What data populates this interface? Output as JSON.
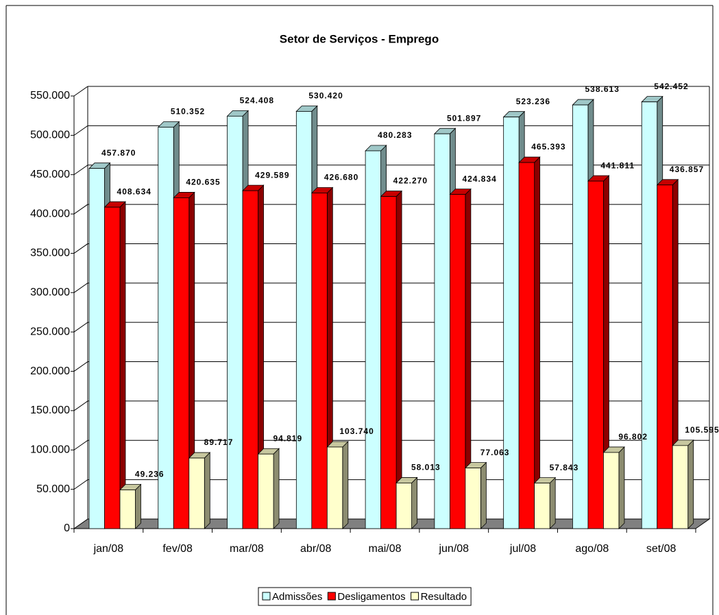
{
  "chart_data": {
    "type": "bar3d",
    "title": "Setor de Serviços - Emprego",
    "categories": [
      "jan/08",
      "fev/08",
      "mar/08",
      "abr/08",
      "mai/08",
      "jun/08",
      "jul/08",
      "ago/08",
      "set/08"
    ],
    "series": [
      {
        "name": "Admissões",
        "color": "#ccffff",
        "values": [
          457870,
          510352,
          524408,
          530420,
          480283,
          501897,
          523236,
          538613,
          542452
        ],
        "value_labels": [
          "457.870",
          "510.352",
          "524.408",
          "530.420",
          "480.283",
          "501.897",
          "523.236",
          "538.613",
          "542.452"
        ]
      },
      {
        "name": "Desligamentos",
        "color": "#ff0000",
        "values": [
          408634,
          420635,
          429589,
          426680,
          422270,
          424834,
          465393,
          441811,
          436857
        ],
        "value_labels": [
          "408.634",
          "420.635",
          "429.589",
          "426.680",
          "422.270",
          "424.834",
          "465.393",
          "441.811",
          "436.857"
        ]
      },
      {
        "name": "Resultado",
        "color": "#ffffcc",
        "values": [
          49236,
          89717,
          94819,
          103740,
          58013,
          77063,
          57843,
          96802,
          105595
        ],
        "value_labels": [
          "49.236",
          "89.717",
          "94.819",
          "103.740",
          "58.013",
          "77.063",
          "57.843",
          "96.802",
          "105.595"
        ]
      }
    ],
    "ylim": [
      0,
      550000
    ],
    "yticks": [
      0,
      {
        "value": 50000,
        "label": "50.000"
      },
      {
        "value": 100000,
        "label": "100.000"
      },
      {
        "value": 150000,
        "label": "150.000"
      },
      {
        "value": 200000,
        "label": "200.000"
      },
      {
        "value": 250000,
        "label": "250.000"
      },
      {
        "value": 300000,
        "label": "300.000"
      },
      {
        "value": 350000,
        "label": "350.000"
      },
      {
        "value": 400000,
        "label": "400.000"
      },
      {
        "value": 450000,
        "label": "450.000"
      },
      {
        "value": 500000,
        "label": "500.000"
      },
      {
        "value": 550000,
        "label": "550.000"
      }
    ],
    "grid": true,
    "legend": "bottom"
  }
}
